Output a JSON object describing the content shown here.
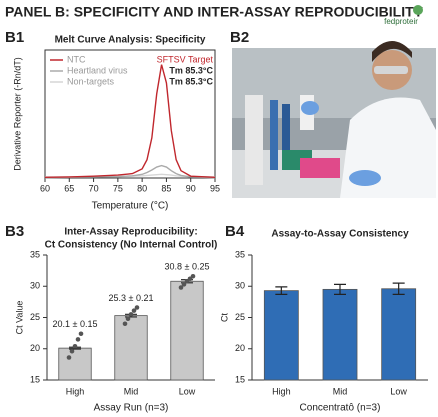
{
  "header": {
    "title": "PANEL B: SPECIFICITY AND INTER-ASSAY REPRODUCIBILITY",
    "logo": "fedproteir"
  },
  "photo": {
    "panel_label": "B2"
  },
  "chart_data": [
    {
      "type": "line",
      "panel_label": "B1",
      "title": "Melt Curve Analysis: Specificity",
      "x_label": "Temperature (°C)",
      "y_label": "Derivative Reporter (-Rn/dT)",
      "x": [
        60,
        65,
        70,
        75,
        78,
        80,
        81,
        82,
        83,
        84,
        85,
        86,
        87,
        88,
        90,
        95
      ],
      "series": [
        {
          "name": "NTC",
          "color": "#c0272d",
          "values": [
            0.02,
            0.03,
            0.05,
            0.08,
            0.12,
            0.25,
            0.5,
            1.1,
            2.3,
            3.1,
            2.6,
            1.3,
            0.5,
            0.2,
            0.05,
            0.02
          ]
        },
        {
          "name": "Heartland virus",
          "color": "#aaaaaa",
          "values": [
            0.01,
            0.02,
            0.03,
            0.04,
            0.06,
            0.1,
            0.15,
            0.22,
            0.3,
            0.34,
            0.3,
            0.2,
            0.12,
            0.07,
            0.03,
            0.01
          ]
        },
        {
          "name": "Non-targets",
          "color": "#d6d6d6",
          "values": [
            0.03,
            0.03,
            0.04,
            0.04,
            0.05,
            0.06,
            0.07,
            0.08,
            0.09,
            0.1,
            0.09,
            0.08,
            0.06,
            0.05,
            0.04,
            0.03
          ]
        }
      ],
      "annotations": [
        "SFTSV Target",
        "Tm 85.3°C",
        "Tm 85.3°C"
      ],
      "xlim": [
        60,
        95
      ],
      "xticks": [
        60,
        65,
        70,
        75,
        80,
        85,
        90,
        95
      ],
      "ylim": [
        0,
        3.5
      ],
      "legend": "upper left",
      "grid": false
    },
    {
      "type": "bar",
      "panel_label": "B3",
      "title": [
        "Inter-Assay Reproducibility:",
        "Ct Consistency (No Internal Control)"
      ],
      "x_label": "Assay Run (n=3)",
      "y_label": "Ct Value",
      "categories": [
        "High",
        "Mid",
        "Low"
      ],
      "values": [
        20.1,
        25.3,
        30.8
      ],
      "errors": [
        0.15,
        0.21,
        0.25
      ],
      "value_labels": [
        "20.1 ± 0.15",
        "25.3 ± 0.21",
        "30.8 ± 0.25"
      ],
      "points": [
        [
          18.6,
          19.6,
          20.4,
          21.5,
          22.4
        ],
        [
          24.0,
          24.8,
          25.5,
          26.1,
          26.6
        ],
        [
          29.8,
          30.3,
          30.8,
          31.2,
          31.6
        ]
      ],
      "color": "#c8c8c8",
      "ylim": [
        15,
        35
      ],
      "yticks": [
        15,
        20,
        25,
        30,
        35
      ],
      "grid": false
    },
    {
      "type": "bar",
      "panel_label": "B4",
      "title": [
        "Assay-to-Assay Consistency"
      ],
      "x_label": "Concentratô (n=3)",
      "y_label": "Ct",
      "categories": [
        "High",
        "Mid",
        "Low"
      ],
      "values": [
        29.3,
        29.5,
        29.6
      ],
      "errors": [
        0.6,
        0.8,
        0.9
      ],
      "color": "#2f6db5",
      "ylim": [
        15,
        35
      ],
      "yticks": [
        15,
        20,
        25,
        30,
        35
      ],
      "grid": false
    }
  ]
}
